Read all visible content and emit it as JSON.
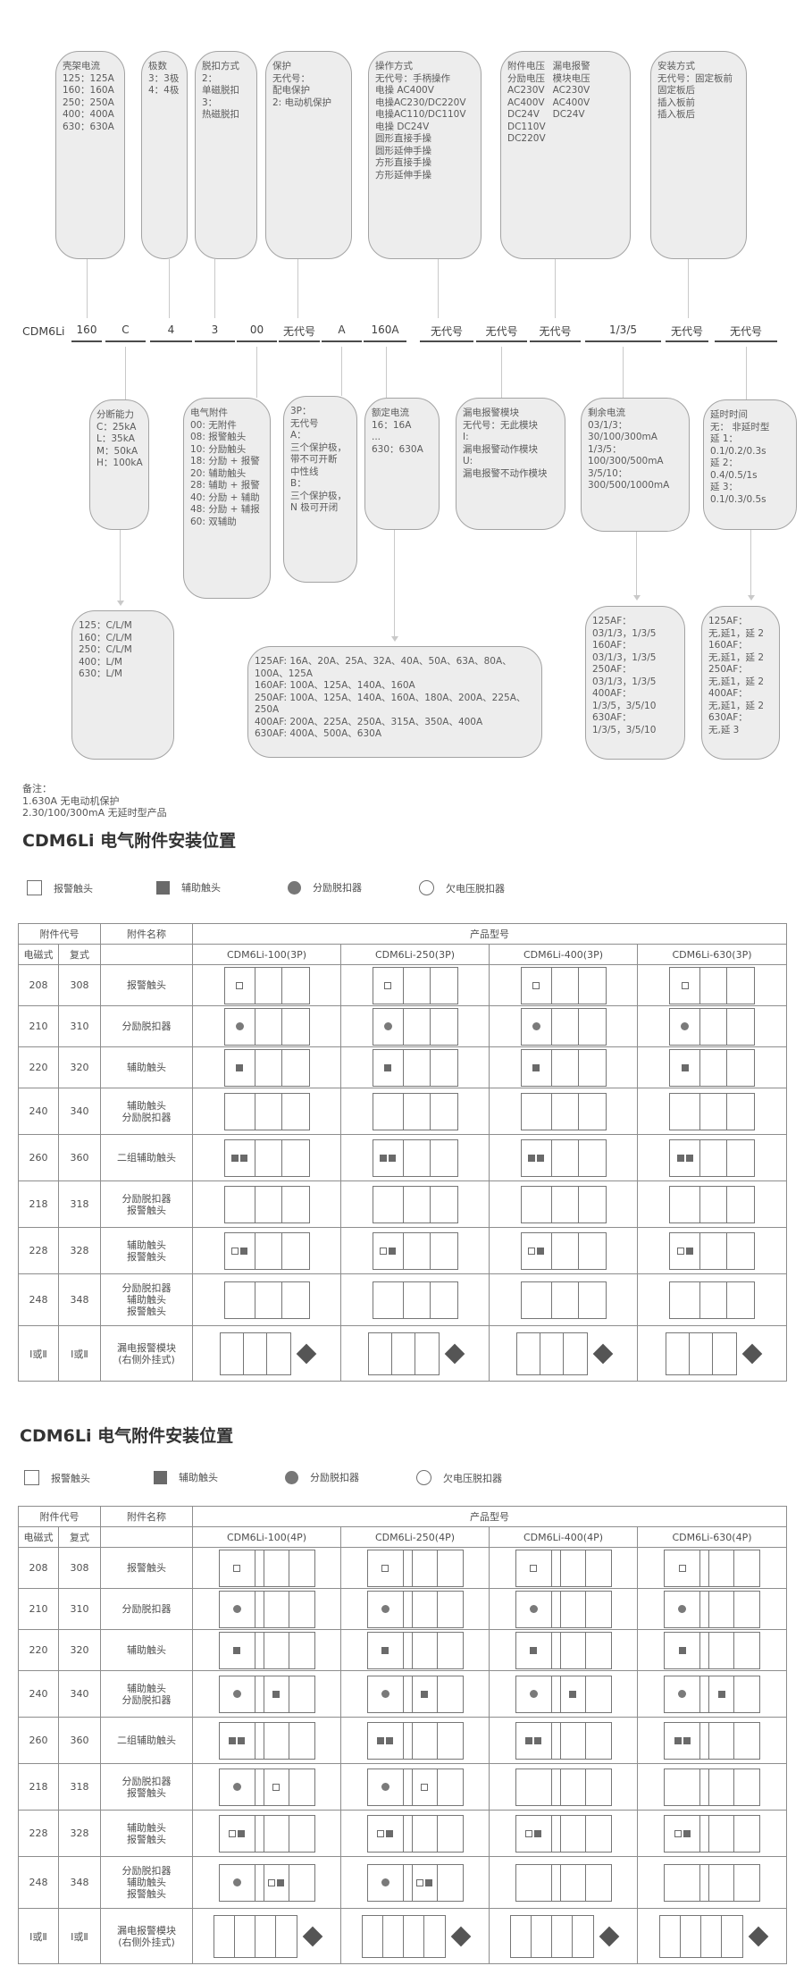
{
  "model_code": {
    "prefix": "CDM6Li",
    "segments": [
      "160",
      "C",
      "4",
      "3",
      "00",
      "无代号",
      "A",
      "160A",
      "无代号",
      "无代号",
      "无代号",
      "1/3/5",
      "无代号",
      "无代号"
    ]
  },
  "diagram": {
    "top_boxes": [
      {
        "key": "frame-current",
        "lines": [
          "壳架电流",
          "125：125A",
          "160：160A",
          "250：250A",
          "400：400A",
          "630：630A"
        ]
      },
      {
        "key": "poles",
        "lines": [
          "极数",
          "3：3极",
          "4：4极"
        ]
      },
      {
        "key": "trip-mode",
        "lines": [
          "脱扣方式",
          "2：",
          "单磁脱扣",
          "3：",
          "热磁脱扣"
        ]
      },
      {
        "key": "protection",
        "lines": [
          "保护",
          "无代号：",
          "配电保护",
          "2: 电动机保护"
        ]
      },
      {
        "key": "operation-mode",
        "lines": [
          "操作方式",
          "无代号：手柄操作",
          "电操 AC400V",
          "电操AC230/DC220V",
          "电操AC110/DC110V",
          "电操 DC24V",
          "圆形直接手操",
          "圆形延伸手操",
          "方形直接手操",
          "方形延伸手操"
        ]
      },
      {
        "key": "accessory-voltage",
        "columns": [
          [
            "附件电压",
            "分励电压",
            "AC230V",
            "AC400V",
            "DC24V",
            "DC110V",
            "DC220V"
          ],
          [
            "漏电报警",
            "模块电压",
            "AC230V",
            "AC400V",
            "DC24V"
          ]
        ]
      },
      {
        "key": "mounting-mode",
        "lines": [
          "安装方式",
          "无代号：固定板前",
          "固定板后",
          "插入板前",
          "插入板后"
        ]
      }
    ],
    "mid_boxes": [
      {
        "key": "breaking-capacity",
        "lines": [
          "分断能力",
          "C：25kA",
          "L：35kA",
          "M：50kA",
          "H：100kA"
        ]
      },
      {
        "key": "electrical-accessories",
        "lines": [
          "电气附件",
          "00: 无附件",
          "08: 报警触头",
          "10: 分励触头",
          "18: 分励 + 报警",
          "20: 辅助触头",
          "28: 辅助 + 报警",
          "40: 分励 + 辅助",
          "48: 分励 + 辅报",
          "60: 双辅助"
        ]
      },
      {
        "key": "three-pole-type",
        "lines": [
          "3P：",
          "无代号",
          "A：",
          "三个保护极，",
          "带不可开断",
          "中性线",
          "B：",
          "三个保护极，",
          "N 极可开闭"
        ]
      },
      {
        "key": "rated-current",
        "lines": [
          "额定电流",
          "16：16A",
          "...",
          "630：630A"
        ]
      },
      {
        "key": "leakage-alarm-module",
        "lines": [
          "漏电报警模块",
          "无代号：无此模块",
          "I:",
          "漏电报警动作模块",
          "U:",
          "漏电报警不动作模块"
        ]
      },
      {
        "key": "residual-current",
        "lines": [
          "剩余电流",
          "03/1/3：",
          "30/100/300mA",
          "1/3/5：",
          "100/300/500mA",
          "3/5/10：",
          "300/500/1000mA"
        ]
      },
      {
        "key": "delay-time",
        "lines": [
          "延时时间",
          "无： 非延时型",
          "延 1：",
          "0.1/0.2/0.3s",
          "延 2：",
          "0.4/0.5/1s",
          "延 3：",
          "0.1/0.3/0.5s"
        ]
      }
    ],
    "bottom_boxes": [
      {
        "key": "frame-capacity-map",
        "lines": [
          "125：C/L/M",
          "160：C/L/M",
          "250：C/L/M",
          "400：L/M",
          "630：L/M"
        ]
      },
      {
        "key": "frame-rated-current-map",
        "wrap": true,
        "lines": [
          "125AF:  16A、20A、25A、32A、40A、50A、63A、80A、100A、125A",
          "160AF:  100A、125A、140A、160A",
          "250AF:  100A、125A、140A、160A、180A、200A、225A、250A",
          "400AF:  200A、225A、250A、315A、350A、400A",
          "630AF:  400A、500A、630A"
        ]
      },
      {
        "key": "frame-residual-map",
        "lines": [
          "125AF：",
          "03/1/3，1/3/5",
          "160AF：",
          "03/1/3，1/3/5",
          "250AF：",
          "03/1/3，1/3/5",
          "400AF：",
          "1/3/5，3/5/10",
          "630AF：",
          "1/3/5，3/5/10"
        ]
      },
      {
        "key": "frame-delay-map",
        "lines": [
          "125AF：",
          "无,延1，延 2",
          "160AF：",
          "无,延1，延 2",
          "250AF：",
          "无,延1，延 2",
          "400AF：",
          "无,延1，延 2",
          "630AF：",
          "无,延 3"
        ]
      }
    ]
  },
  "notes": [
    "备注：",
    "1.630A 无电动机保护",
    "2.30/100/300mA 无延时型产品"
  ],
  "colors": {
    "box_fill": "#ededed",
    "box_border": "#a3a3a3",
    "table_border": "#8d8d8d",
    "symbol": "#6a6a6a",
    "connector": "#c9c9c9"
  },
  "sections": [
    {
      "title": "CDM6Li 电气附件安装位置",
      "legend": [
        {
          "sym": "sq_open",
          "label": "报警触头"
        },
        {
          "sym": "sq_fill",
          "label": "辅助触头"
        },
        {
          "sym": "circ_fill",
          "label": "分励脱扣器"
        },
        {
          "sym": "circ_open",
          "label": "欠电压脱扣器"
        }
      ],
      "table": {
        "code_header": "附件代号",
        "name_header": "附件名称",
        "product_header": "产品型号",
        "sub_headers": [
          "电磁式",
          "复式"
        ],
        "products": [
          "CDM6Li-100(3P)",
          "CDM6Li-250(3P)",
          "CDM6Li-400(3P)",
          "CDM6Li-630(3P)"
        ],
        "rows": [
          {
            "em": "208",
            "fu": "308",
            "name": [
              "报警触头"
            ],
            "marks": [
              {
                "c": 0,
                "s": "sq_open"
              }
            ],
            "on": [
              1,
              1,
              1,
              1
            ]
          },
          {
            "em": "210",
            "fu": "310",
            "name": [
              "分励脱扣器"
            ],
            "marks": [
              {
                "c": 0,
                "s": "circ_fill"
              }
            ],
            "on": [
              1,
              1,
              1,
              1
            ]
          },
          {
            "em": "220",
            "fu": "320",
            "name": [
              "辅助触头"
            ],
            "marks": [
              {
                "c": 0,
                "s": "sq_fill"
              }
            ],
            "on": [
              1,
              1,
              1,
              1
            ]
          },
          {
            "em": "240",
            "fu": "340",
            "name": [
              "辅助触头",
              "分励脱扣器"
            ],
            "marks": [],
            "on": [
              0,
              0,
              0,
              0
            ]
          },
          {
            "em": "260",
            "fu": "360",
            "name": [
              "二组辅助触头"
            ],
            "marks": [
              {
                "c": 0,
                "s": "sq_fill"
              },
              {
                "c": 0,
                "s": "sq_fill"
              }
            ],
            "on": [
              1,
              1,
              1,
              1
            ]
          },
          {
            "em": "218",
            "fu": "318",
            "name": [
              "分励脱扣器",
              "报警触头"
            ],
            "marks": [],
            "on": [
              0,
              0,
              0,
              0
            ]
          },
          {
            "em": "228",
            "fu": "328",
            "name": [
              "辅助触头",
              "报警触头"
            ],
            "marks": [
              {
                "c": 0,
                "s": "sq_open"
              },
              {
                "c": 0,
                "s": "sq_fill"
              }
            ],
            "on": [
              1,
              1,
              1,
              1
            ]
          },
          {
            "em": "248",
            "fu": "348",
            "name": [
              "分励脱扣器",
              "辅助触头",
              "报警触头"
            ],
            "marks": [],
            "on": [
              0,
              0,
              0,
              0
            ]
          }
        ],
        "module_row": {
          "em": "Ⅰ或Ⅱ",
          "fu": "Ⅰ或Ⅱ",
          "name": [
            "漏电报警模块",
            "(右侧外挂式)"
          ]
        }
      }
    },
    {
      "title": "CDM6Li 电气附件安装位置",
      "legend": [
        {
          "sym": "sq_open",
          "label": "报警触头"
        },
        {
          "sym": "sq_fill",
          "label": "辅助触头"
        },
        {
          "sym": "circ_fill",
          "label": "分励脱扣器"
        },
        {
          "sym": "circ_open",
          "label": "欠电压脱扣器"
        }
      ],
      "table": {
        "code_header": "附件代号",
        "name_header": "附件名称",
        "product_header": "产品型号",
        "sub_headers": [
          "电磁式",
          "复式"
        ],
        "products": [
          "CDM6Li-100(4P)",
          "CDM6Li-250(4P)",
          "CDM6Li-400(4P)",
          "CDM6Li-630(4P)"
        ],
        "rows": [
          {
            "em": "208",
            "fu": "308",
            "name": [
              "报警触头"
            ],
            "marks": [
              {
                "c": 0,
                "s": "sq_open"
              }
            ],
            "on": [
              1,
              1,
              1,
              1
            ]
          },
          {
            "em": "210",
            "fu": "310",
            "name": [
              "分励脱扣器"
            ],
            "marks": [
              {
                "c": 0,
                "s": "circ_fill"
              }
            ],
            "on": [
              1,
              1,
              1,
              1
            ]
          },
          {
            "em": "220",
            "fu": "320",
            "name": [
              "辅助触头"
            ],
            "marks": [
              {
                "c": 0,
                "s": "sq_fill"
              }
            ],
            "on": [
              1,
              1,
              1,
              1
            ]
          },
          {
            "em": "240",
            "fu": "340",
            "name": [
              "辅助触头",
              "分励脱扣器"
            ],
            "marks": [
              {
                "c": 0,
                "s": "circ_fill"
              },
              {
                "c": 2,
                "s": "sq_fill"
              }
            ],
            "on": [
              1,
              1,
              1,
              1
            ]
          },
          {
            "em": "260",
            "fu": "360",
            "name": [
              "二组辅助触头"
            ],
            "marks": [
              {
                "c": 0,
                "s": "sq_fill"
              },
              {
                "c": 0,
                "s": "sq_fill"
              }
            ],
            "on": [
              1,
              1,
              1,
              1
            ]
          },
          {
            "em": "218",
            "fu": "318",
            "name": [
              "分励脱扣器",
              "报警触头"
            ],
            "marks": [
              {
                "c": 0,
                "s": "circ_fill"
              },
              {
                "c": 2,
                "s": "sq_open"
              }
            ],
            "on": [
              1,
              1,
              0,
              0
            ]
          },
          {
            "em": "228",
            "fu": "328",
            "name": [
              "辅助触头",
              "报警触头"
            ],
            "marks": [
              {
                "c": 0,
                "s": "sq_open"
              },
              {
                "c": 0,
                "s": "sq_fill"
              }
            ],
            "on": [
              1,
              1,
              1,
              1
            ]
          },
          {
            "em": "248",
            "fu": "348",
            "name": [
              "分励脱扣器",
              "辅助触头",
              "报警触头"
            ],
            "marks": [
              {
                "c": 0,
                "s": "circ_fill"
              },
              {
                "c": 2,
                "s": "sq_open"
              },
              {
                "c": 2,
                "s": "sq_fill"
              }
            ],
            "on": [
              1,
              1,
              0,
              0
            ]
          }
        ],
        "module_row": {
          "em": "Ⅰ或Ⅱ",
          "fu": "Ⅰ或Ⅱ",
          "name": [
            "漏电报警模块",
            "(右侧外挂式)"
          ]
        }
      }
    }
  ]
}
